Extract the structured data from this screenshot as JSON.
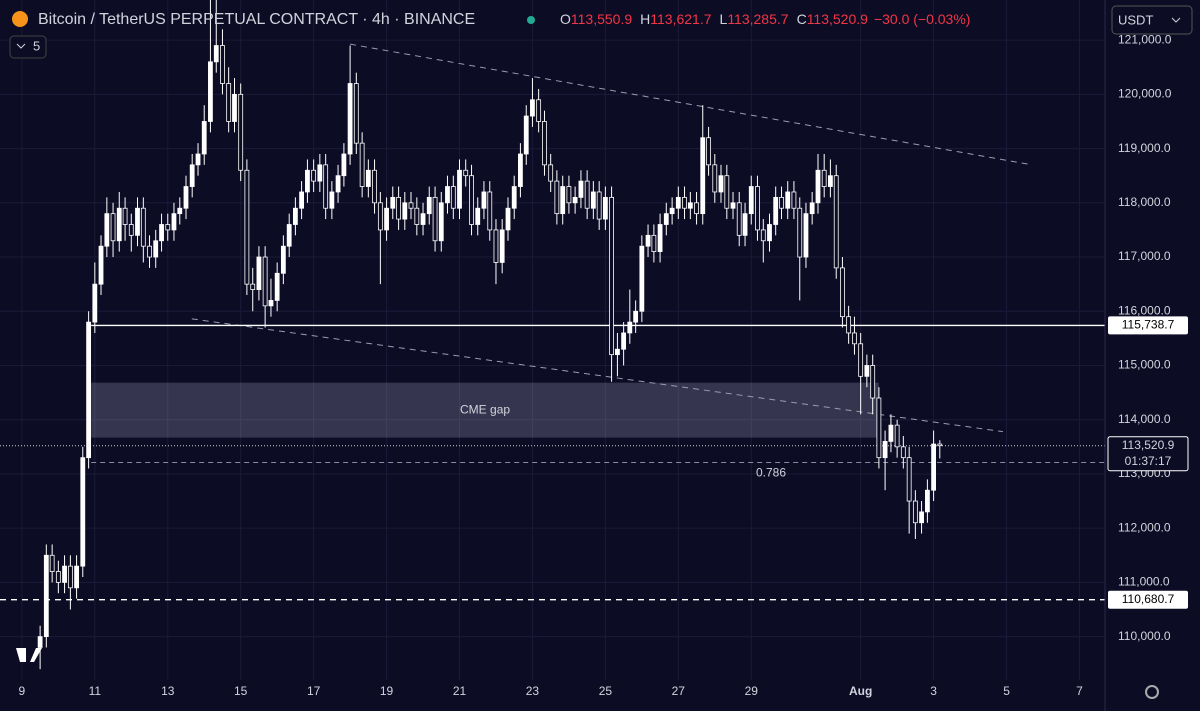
{
  "chart_data": {
    "type": "candlestick",
    "title": "Bitcoin / TetherUS PERPETUAL CONTRACT · 4h · BINANCE",
    "legend": [
      {
        "key": "O",
        "value": "113,550.9"
      },
      {
        "key": "H",
        "value": "113,621.7"
      },
      {
        "key": "L",
        "value": "113,285.7"
      },
      {
        "key": "C",
        "value": "113,520.9"
      }
    ],
    "change": "−30.0 (−0.03%)",
    "currency": "USDT",
    "indicators": "5",
    "xlim": [
      8.4,
      38.7
    ],
    "xticks": [
      9,
      11,
      13,
      15,
      17,
      19,
      21,
      23,
      25,
      27,
      29,
      {
        "value": 32,
        "label": "Aug"
      },
      {
        "value": 34,
        "label": "3"
      },
      {
        "value": 36,
        "label": "5"
      },
      {
        "value": 38,
        "label": "7"
      }
    ],
    "ylim": [
      109200,
      121740
    ],
    "yticks": [
      {
        "value": 110000,
        "label": "110,000.0"
      },
      {
        "value": 111000,
        "label": "111,000.0"
      },
      {
        "value": 112000,
        "label": "112,000.0"
      },
      {
        "value": 113000,
        "label": "113,000.0"
      },
      {
        "value": 114000,
        "label": "114,000.0"
      },
      {
        "value": 115000,
        "label": "115,000.0"
      },
      {
        "value": 116000,
        "label": "116,000.0"
      },
      {
        "value": 117000,
        "label": "117,000.0"
      },
      {
        "value": 118000,
        "label": "118,000.0"
      },
      {
        "value": 119000,
        "label": "119,000.0"
      },
      {
        "value": 120000,
        "label": "120,000.0"
      },
      {
        "value": 121000,
        "label": "121,000.0"
      }
    ],
    "grid": true,
    "color": "#ffffff",
    "x": [
      9.5,
      9.67,
      9.83,
      10,
      10.17,
      10.33,
      10.5,
      10.67,
      10.83,
      11,
      11.17,
      11.33,
      11.5,
      11.67,
      11.83,
      12,
      12.17,
      12.33,
      12.5,
      12.67,
      12.83,
      13,
      13.17,
      13.33,
      13.5,
      13.67,
      13.83,
      14,
      14.17,
      14.33,
      14.5,
      14.67,
      14.83,
      15,
      15.17,
      15.33,
      15.5,
      15.67,
      15.83,
      16,
      16.17,
      16.33,
      16.5,
      16.67,
      16.83,
      17,
      17.17,
      17.33,
      17.5,
      17.67,
      17.83,
      18,
      18.17,
      18.33,
      18.5,
      18.67,
      18.83,
      19,
      19.17,
      19.33,
      19.5,
      19.67,
      19.83,
      20,
      20.17,
      20.33,
      20.5,
      20.67,
      20.83,
      21,
      21.17,
      21.33,
      21.5,
      21.67,
      21.83,
      22,
      22.17,
      22.33,
      22.5,
      22.67,
      22.83,
      23,
      23.17,
      23.33,
      23.5,
      23.67,
      23.83,
      24,
      24.17,
      24.33,
      24.5,
      24.67,
      24.83,
      25,
      25.17,
      25.33,
      25.5,
      25.67,
      25.83,
      26,
      26.17,
      26.33,
      26.5,
      26.67,
      26.83,
      27,
      27.17,
      27.33,
      27.5,
      27.67,
      27.83,
      28,
      28.17,
      28.33,
      28.5,
      28.67,
      28.83,
      29,
      29.17,
      29.33,
      29.5,
      29.67,
      29.83,
      30,
      30.17,
      30.33,
      30.5,
      30.67,
      30.83,
      31,
      31.17,
      31.33,
      31.5,
      31.67,
      31.83,
      32,
      32.17,
      32.33,
      32.5,
      32.67,
      32.83,
      33,
      33.17,
      33.33,
      33.5,
      33.67,
      33.83,
      34,
      34.17
    ],
    "ohlc": [
      [
        109800,
        110200,
        109400,
        110000
      ],
      [
        110000,
        111700,
        109800,
        111500
      ],
      [
        111500,
        111700,
        111000,
        111200
      ],
      [
        111200,
        111400,
        110800,
        111000
      ],
      [
        111000,
        111500,
        110800,
        111300
      ],
      [
        111300,
        111500,
        110500,
        110900
      ],
      [
        110900,
        111500,
        110700,
        111300
      ],
      [
        111300,
        113500,
        111100,
        113300
      ],
      [
        113300,
        116000,
        113100,
        115800
      ],
      [
        115800,
        116900,
        115600,
        116500
      ],
      [
        116500,
        117400,
        116300,
        117200
      ],
      [
        117200,
        118100,
        117000,
        117800
      ],
      [
        117800,
        118000,
        117000,
        117300
      ],
      [
        117300,
        118200,
        117100,
        117900
      ],
      [
        117900,
        118100,
        117300,
        117600
      ],
      [
        117600,
        117800,
        117100,
        117400
      ],
      [
        117400,
        118100,
        117200,
        117900
      ],
      [
        117900,
        118100,
        116900,
        117200
      ],
      [
        117200,
        117400,
        116800,
        117000
      ],
      [
        117000,
        117500,
        116800,
        117300
      ],
      [
        117300,
        117800,
        117100,
        117600
      ],
      [
        117600,
        117800,
        117300,
        117500
      ],
      [
        117500,
        118000,
        117300,
        117800
      ],
      [
        117800,
        118100,
        117600,
        117900
      ],
      [
        117900,
        118500,
        117700,
        118300
      ],
      [
        118300,
        118900,
        118100,
        118700
      ],
      [
        118700,
        119100,
        118500,
        118900
      ],
      [
        118900,
        119800,
        118700,
        119500
      ],
      [
        119500,
        121800,
        119300,
        120600
      ],
      [
        120600,
        121800,
        120400,
        120900
      ],
      [
        120900,
        121200,
        120000,
        120200
      ],
      [
        120200,
        120500,
        119300,
        119500
      ],
      [
        119500,
        120300,
        119300,
        120000
      ],
      [
        120000,
        120200,
        118400,
        118600
      ],
      [
        118600,
        118800,
        116300,
        116500
      ],
      [
        116500,
        116800,
        116000,
        116400
      ],
      [
        116400,
        117200,
        116200,
        117000
      ],
      [
        117000,
        117200,
        115700,
        116100
      ],
      [
        116100,
        116600,
        115900,
        116200
      ],
      [
        116200,
        116900,
        116000,
        116700
      ],
      [
        116700,
        117400,
        116500,
        117200
      ],
      [
        117200,
        117800,
        117000,
        117600
      ],
      [
        117600,
        118100,
        117400,
        117900
      ],
      [
        117900,
        118400,
        117700,
        118200
      ],
      [
        118200,
        118800,
        118000,
        118600
      ],
      [
        118600,
        118800,
        118200,
        118400
      ],
      [
        118400,
        118900,
        118200,
        118700
      ],
      [
        118700,
        118900,
        117700,
        117900
      ],
      [
        117900,
        118400,
        117700,
        118200
      ],
      [
        118200,
        118700,
        118000,
        118500
      ],
      [
        118500,
        119100,
        118300,
        118900
      ],
      [
        118900,
        120900,
        118700,
        120200
      ],
      [
        120200,
        120400,
        118900,
        119100
      ],
      [
        119100,
        119300,
        118100,
        118300
      ],
      [
        118300,
        118800,
        118100,
        118600
      ],
      [
        118600,
        118800,
        117800,
        118000
      ],
      [
        118000,
        118200,
        116500,
        117500
      ],
      [
        117500,
        118100,
        117300,
        117900
      ],
      [
        117900,
        118300,
        117700,
        118100
      ],
      [
        118100,
        118300,
        117500,
        117700
      ],
      [
        117700,
        118200,
        117500,
        118000
      ],
      [
        118000,
        118200,
        117700,
        117900
      ],
      [
        117900,
        118100,
        117400,
        117600
      ],
      [
        117600,
        118000,
        117400,
        117800
      ],
      [
        117800,
        118300,
        117600,
        118100
      ],
      [
        118100,
        118300,
        117100,
        117300
      ],
      [
        117300,
        118200,
        117100,
        118000
      ],
      [
        118000,
        118500,
        117800,
        118300
      ],
      [
        118300,
        118500,
        117700,
        117900
      ],
      [
        117900,
        118800,
        117700,
        118600
      ],
      [
        118600,
        118800,
        118300,
        118500
      ],
      [
        118500,
        118700,
        117400,
        117600
      ],
      [
        117600,
        118100,
        117400,
        117900
      ],
      [
        117900,
        118400,
        117700,
        118200
      ],
      [
        118200,
        118400,
        117300,
        117500
      ],
      [
        117500,
        117700,
        116500,
        116900
      ],
      [
        116900,
        117700,
        116700,
        117500
      ],
      [
        117500,
        118100,
        117300,
        117900
      ],
      [
        117900,
        118500,
        117700,
        118300
      ],
      [
        118300,
        119100,
        118100,
        118900
      ],
      [
        118900,
        119800,
        118700,
        119600
      ],
      [
        119600,
        120300,
        119400,
        119900
      ],
      [
        119900,
        120100,
        119300,
        119500
      ],
      [
        119500,
        119700,
        118500,
        118700
      ],
      [
        118700,
        118900,
        118200,
        118400
      ],
      [
        118400,
        118600,
        117600,
        117800
      ],
      [
        117800,
        118500,
        117600,
        118300
      ],
      [
        118300,
        118500,
        117800,
        118000
      ],
      [
        118000,
        118300,
        117800,
        118100
      ],
      [
        118100,
        118600,
        117900,
        118400
      ],
      [
        118400,
        118600,
        117700,
        117900
      ],
      [
        117900,
        118400,
        117700,
        118200
      ],
      [
        118200,
        118400,
        117500,
        117700
      ],
      [
        117700,
        118300,
        117500,
        118100
      ],
      [
        118100,
        118300,
        114700,
        115200
      ],
      [
        115200,
        115600,
        114800,
        115300
      ],
      [
        115300,
        115800,
        115000,
        115600
      ],
      [
        115600,
        116400,
        115400,
        115800
      ],
      [
        115800,
        116200,
        115600,
        116000
      ],
      [
        116000,
        117400,
        115800,
        117200
      ],
      [
        117200,
        117600,
        117000,
        117400
      ],
      [
        117400,
        117600,
        116900,
        117100
      ],
      [
        117100,
        117800,
        116900,
        117600
      ],
      [
        117600,
        118000,
        117400,
        117800
      ],
      [
        117800,
        118100,
        117600,
        117900
      ],
      [
        117900,
        118300,
        117700,
        118100
      ],
      [
        118100,
        118300,
        117700,
        117900
      ],
      [
        117900,
        118200,
        117700,
        118000
      ],
      [
        118000,
        118200,
        117600,
        117800
      ],
      [
        117800,
        119800,
        117600,
        119200
      ],
      [
        119200,
        119400,
        118500,
        118700
      ],
      [
        118700,
        118900,
        118000,
        118200
      ],
      [
        118200,
        118700,
        118000,
        118500
      ],
      [
        118500,
        118700,
        117700,
        117900
      ],
      [
        117900,
        118200,
        117700,
        118000
      ],
      [
        118000,
        118200,
        117200,
        117400
      ],
      [
        117400,
        118000,
        117200,
        117800
      ],
      [
        117800,
        118500,
        117600,
        118300
      ],
      [
        118300,
        118500,
        117300,
        117500
      ],
      [
        117500,
        117700,
        116900,
        117300
      ],
      [
        117300,
        117800,
        117100,
        117600
      ],
      [
        117600,
        118300,
        117400,
        118100
      ],
      [
        118100,
        118300,
        117700,
        117900
      ],
      [
        117900,
        118400,
        117700,
        118200
      ],
      [
        118200,
        118400,
        117700,
        117900
      ],
      [
        117900,
        118100,
        116200,
        117000
      ],
      [
        117000,
        118000,
        116800,
        117800
      ],
      [
        117800,
        118200,
        117600,
        118000
      ],
      [
        118000,
        118900,
        117800,
        118600
      ],
      [
        118600,
        118900,
        118100,
        118300
      ],
      [
        118300,
        118800,
        118100,
        118500
      ],
      [
        118500,
        118700,
        116600,
        116800
      ],
      [
        116800,
        117000,
        115700,
        115900
      ],
      [
        115900,
        116100,
        115400,
        115600
      ],
      [
        115600,
        115900,
        115200,
        115400
      ],
      [
        115400,
        115600,
        114100,
        114800
      ],
      [
        114800,
        115200,
        114600,
        115000
      ],
      [
        115000,
        115200,
        114100,
        114400
      ],
      [
        114400,
        114600,
        113100,
        113300
      ],
      [
        113300,
        113800,
        112700,
        113600
      ],
      [
        113600,
        114100,
        113400,
        113900
      ],
      [
        113900,
        114000,
        113300,
        113500
      ],
      [
        113500,
        113700,
        113100,
        113300
      ],
      [
        113300,
        113500,
        111900,
        112500
      ],
      [
        112500,
        112700,
        111800,
        112100
      ],
      [
        112100,
        112500,
        111900,
        112300
      ],
      [
        112300,
        112900,
        112100,
        112700
      ],
      [
        112700,
        113800,
        112500,
        113550.9
      ],
      [
        113550.9,
        113621.7,
        113285.7,
        113520.9
      ]
    ],
    "trendlines": [
      {
        "x": [
          18,
          36.7
        ],
        "y": [
          120926,
          118700
        ]
      },
      {
        "x": [
          13.66,
          35.9
        ],
        "y": [
          115860,
          113780
        ]
      }
    ],
    "hlines": [
      {
        "value": 115738.7,
        "label": "115,738.7",
        "x": [
          10.9,
          38.7
        ]
      },
      {
        "value": 110680.7,
        "label": "110,680.7",
        "x": [
          8.4,
          38.7
        ]
      }
    ],
    "zone": {
      "label": "CME gap",
      "x": [
        10.9,
        32.5
      ],
      "y": [
        113670,
        114683
      ]
    },
    "fib": {
      "label": "0.786",
      "value": 113210,
      "x": [
        10.9,
        38.7
      ]
    },
    "last_price": {
      "value": 113520.9,
      "label": "113,520.9",
      "countdown": "01:37:17"
    }
  }
}
